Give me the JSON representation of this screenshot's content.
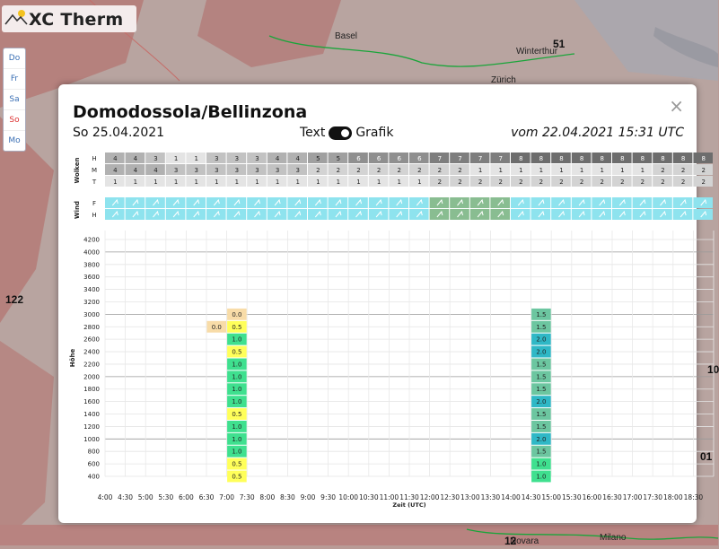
{
  "app": {
    "name": "XC Therm"
  },
  "map": {
    "labels": [
      "Basel",
      "Winterthur",
      "Zürich",
      "Milano",
      "Novara"
    ],
    "numbers": [
      "51",
      "122",
      "10",
      "01",
      "12"
    ]
  },
  "day_nav": [
    {
      "label": "Do",
      "active": false
    },
    {
      "label": "Fr",
      "active": false
    },
    {
      "label": "Sa",
      "active": false
    },
    {
      "label": "So",
      "active": true
    },
    {
      "label": "Mo",
      "active": false
    }
  ],
  "popup": {
    "title": "Domodossola/Bellinzona",
    "date": "So 25.04.2021",
    "toggle_text": "Text",
    "toggle_graphic": "Grafik",
    "issued": "vom 22.04.2021 15:31 UTC",
    "close": "×"
  },
  "colors": {
    "c05": "#ffff5a",
    "c10": "#3fe08f",
    "c15": "#6cc6a0",
    "c20": "#2fb8c6",
    "c00": "#f8dca8",
    "wind_light": "#8ee3ee",
    "wind_dark": "#89bd91"
  },
  "chart_data": {
    "type": "heatmap",
    "times": [
      "4:00",
      "4:30",
      "5:00",
      "5:30",
      "6:00",
      "6:30",
      "7:00",
      "7:30",
      "8:00",
      "8:30",
      "9:00",
      "9:30",
      "10:00",
      "10:30",
      "11:00",
      "11:30",
      "12:00",
      "12:30",
      "13:00",
      "13:30",
      "14:00",
      "14:30",
      "15:00",
      "15:30",
      "16:00",
      "16:30",
      "17:00",
      "17:30",
      "18:00",
      "18:30"
    ],
    "xlabel": "Zeit (UTC)",
    "ylabel": "Höhe",
    "heights": [
      400,
      600,
      800,
      1000,
      1200,
      1400,
      1600,
      1800,
      2000,
      2200,
      2400,
      2600,
      2800,
      3000,
      3200,
      3400,
      3600,
      3800,
      4000,
      4200
    ],
    "ylim": [
      400,
      4200
    ],
    "clouds": {
      "label": "Wolken",
      "rows": {
        "H": [
          "4",
          "4",
          "3",
          "1",
          "1",
          "3",
          "3",
          "3",
          "4",
          "4",
          "5",
          "5",
          "6",
          "6",
          "6",
          "6",
          "7",
          "7",
          "7",
          "7",
          "8",
          "8",
          "8",
          "8",
          "8",
          "8",
          "8",
          "8",
          "8",
          "8"
        ],
        "M": [
          "4",
          "4",
          "4",
          "3",
          "3",
          "3",
          "3",
          "3",
          "3",
          "3",
          "2",
          "2",
          "2",
          "2",
          "2",
          "2",
          "2",
          "2",
          "1",
          "1",
          "1",
          "1",
          "1",
          "1",
          "1",
          "1",
          "1",
          "2",
          "2",
          "2"
        ],
        "T": [
          "1",
          "1",
          "1",
          "1",
          "1",
          "1",
          "1",
          "1",
          "1",
          "1",
          "1",
          "1",
          "1",
          "1",
          "1",
          "1",
          "2",
          "2",
          "2",
          "2",
          "2",
          "2",
          "2",
          "2",
          "2",
          "2",
          "2",
          "2",
          "2",
          "2"
        ]
      }
    },
    "wind": {
      "label": "Wind",
      "rows": [
        "F",
        "H"
      ]
    },
    "series": [
      {
        "time": "6:30",
        "column": [
          null,
          null,
          null,
          null,
          null,
          null,
          null,
          null,
          null,
          null,
          null,
          null,
          "0.0"
        ]
      },
      {
        "time": "7:00",
        "column": [
          "0.5",
          "0.5",
          "1.0",
          "1.0",
          "1.0",
          "0.5",
          "1.0",
          "1.0",
          "1.0",
          "1.0",
          "0.5",
          "1.0",
          "0.5",
          "0.0",
          null
        ]
      },
      {
        "time": "14:30",
        "column": [
          "1.0",
          "1.0",
          "1.5",
          "2.0",
          "1.5",
          "1.5",
          "2.0",
          "1.5",
          "1.5",
          "1.5",
          "2.0",
          "2.0",
          "1.5",
          "1.5"
        ]
      }
    ]
  }
}
